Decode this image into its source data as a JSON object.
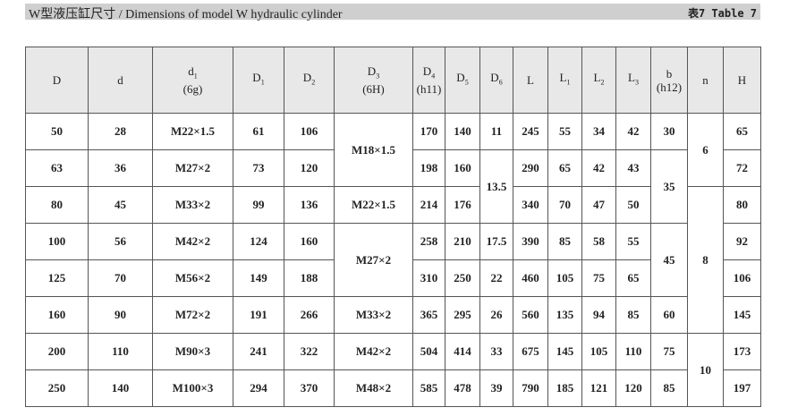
{
  "header": {
    "title": "W型液压缸尺寸 / Dimensions of model W hydraulic cylinder",
    "table_no": "表7  Table 7"
  },
  "table": {
    "columns": [
      {
        "text": "D"
      },
      {
        "text": "d"
      },
      {
        "text": "d",
        "sub": "1",
        "note": "(6g)"
      },
      {
        "text": "D",
        "sub": "1"
      },
      {
        "text": "D",
        "sub": "2"
      },
      {
        "text": "D",
        "sub": "3",
        "note": "(6H)"
      },
      {
        "text": "D",
        "sub": "4",
        "note": "(h11)"
      },
      {
        "text": "D",
        "sub": "5"
      },
      {
        "text": "D",
        "sub": "6"
      },
      {
        "text": "L"
      },
      {
        "text": "L",
        "sub": "1"
      },
      {
        "text": "L",
        "sub": "2"
      },
      {
        "text": "L",
        "sub": "3"
      },
      {
        "text": "b",
        "note": "(h12)"
      },
      {
        "text": "n"
      },
      {
        "text": "H"
      }
    ],
    "rows": [
      [
        50,
        28,
        "M22×1.5",
        61,
        106,
        "M18×1.5",
        170,
        140,
        11,
        245,
        55,
        34,
        42,
        30,
        6,
        65
      ],
      [
        63,
        36,
        "M27×2",
        73,
        120,
        198,
        160,
        13.5,
        290,
        65,
        42,
        43,
        35,
        72
      ],
      [
        80,
        45,
        "M33×2",
        99,
        136,
        "M22×1.5",
        214,
        176,
        340,
        70,
        47,
        50,
        8,
        80
      ],
      [
        100,
        56,
        "M42×2",
        124,
        160,
        "M27×2",
        258,
        210,
        17.5,
        390,
        85,
        58,
        55,
        45,
        92
      ],
      [
        125,
        70,
        "M56×2",
        149,
        188,
        310,
        250,
        22,
        460,
        105,
        75,
        65,
        106
      ],
      [
        160,
        90,
        "M72×2",
        191,
        266,
        "M33×2",
        365,
        295,
        26,
        560,
        135,
        94,
        85,
        60,
        145
      ],
      [
        200,
        110,
        "M90×3",
        241,
        322,
        "M42×2",
        504,
        414,
        33,
        675,
        145,
        105,
        110,
        75,
        10,
        173
      ],
      [
        250,
        140,
        "M100×3",
        294,
        370,
        "M48×2",
        585,
        478,
        39,
        790,
        185,
        121,
        120,
        85,
        197
      ]
    ]
  }
}
